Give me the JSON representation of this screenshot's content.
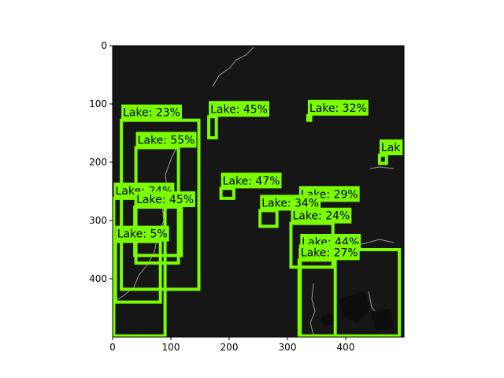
{
  "figure": {
    "x_ticks": [
      "0",
      "100",
      "200",
      "300",
      "400"
    ],
    "y_ticks": [
      "0",
      "100",
      "200",
      "300",
      "400"
    ],
    "colors": {
      "background": "#161616",
      "box": "#7cfc00",
      "label_bg": "#7cfc00",
      "text": "#000000"
    }
  },
  "chart_data": {
    "type": "image-detections",
    "xlim": [
      0,
      500
    ],
    "ylim": [
      500,
      0
    ],
    "detections": [
      {
        "label": "Lake: 23%",
        "x0": 15,
        "y0": 128,
        "x1": 148,
        "y1": 418
      },
      {
        "label": "Lake: 45%",
        "x0": 165,
        "y0": 122,
        "x1": 178,
        "y1": 158
      },
      {
        "label": "Lake: 32%",
        "x0": 335,
        "y0": 120,
        "x1": 340,
        "y1": 128
      },
      {
        "label": "Lake: 55%",
        "x0": 40,
        "y0": 175,
        "x1": 113,
        "y1": 373
      },
      {
        "label": "Lak",
        "x0": 458,
        "y0": 188,
        "x1": 470,
        "y1": 202
      },
      {
        "label": "Lake: 47%",
        "x0": 186,
        "y0": 245,
        "x1": 208,
        "y1": 262
      },
      {
        "label": "Lake: 29%",
        "x0": 320,
        "y0": 268,
        "x1": 330,
        "y1": 278
      },
      {
        "label": "Lake: 24%",
        "x0": 2,
        "y0": 262,
        "x1": 90,
        "y1": 498
      },
      {
        "label": "Lake: 45%",
        "x0": 38,
        "y0": 277,
        "x1": 118,
        "y1": 360
      },
      {
        "label": "Lake: 34%",
        "x0": 253,
        "y0": 283,
        "x1": 282,
        "y1": 310
      },
      {
        "label": "Lake: 24%",
        "x0": 306,
        "y0": 305,
        "x1": 378,
        "y1": 380
      },
      {
        "label": "Lake: 5%",
        "x0": 5,
        "y0": 336,
        "x1": 82,
        "y1": 440
      },
      {
        "label": "Lake: 44%",
        "x0": 322,
        "y0": 350,
        "x1": 492,
        "y1": 498
      },
      {
        "label": "Lake: 27%",
        "x0": 320,
        "y0": 368,
        "x1": 382,
        "y1": 498
      }
    ]
  }
}
